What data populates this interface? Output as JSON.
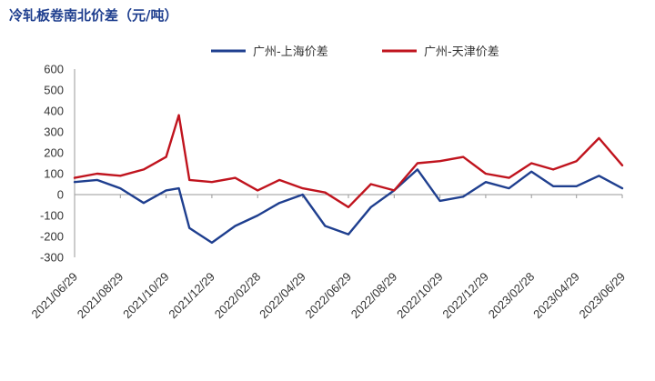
{
  "chart_data": {
    "type": "line",
    "title": "冷轧板卷南北价差（元/吨）",
    "xlabel": "",
    "ylabel": "",
    "ylim": [
      -300,
      600
    ],
    "yticks": [
      600,
      500,
      400,
      300,
      200,
      100,
      0,
      -100,
      -200,
      -300
    ],
    "x_tick_labels": [
      "2021/06/29",
      "2021/08/29",
      "2021/10/29",
      "2021/12/29",
      "2022/02/28",
      "2022/04/29",
      "2022/06/29",
      "2022/08/29",
      "2022/10/29",
      "2022/12/29",
      "2023/02/28",
      "2023/04/29",
      "2023/06/29"
    ],
    "x": [
      "2021/06/29",
      "2021/07/29",
      "2021/08/29",
      "2021/09/29",
      "2021/10/29",
      "2021/11/15",
      "2021/11/29",
      "2021/12/29",
      "2022/01/29",
      "2022/02/28",
      "2022/03/29",
      "2022/04/29",
      "2022/05/29",
      "2022/06/29",
      "2022/07/29",
      "2022/08/29",
      "2022/09/29",
      "2022/10/29",
      "2022/11/29",
      "2022/12/29",
      "2023/01/29",
      "2023/02/28",
      "2023/03/29",
      "2023/04/29",
      "2023/05/29",
      "2023/06/29"
    ],
    "legend_position": "top",
    "grid": false,
    "series": [
      {
        "name": "广州-上海价差",
        "color": "#1f3f8f",
        "values": [
          60,
          70,
          30,
          -40,
          20,
          30,
          -160,
          -230,
          -150,
          -100,
          -40,
          0,
          -150,
          -190,
          -60,
          20,
          120,
          -30,
          -10,
          60,
          30,
          110,
          40,
          40,
          90,
          30
        ]
      },
      {
        "name": "广州-天津价差",
        "color": "#c0141e",
        "values": [
          80,
          100,
          90,
          120,
          180,
          380,
          70,
          60,
          80,
          20,
          70,
          30,
          10,
          -60,
          50,
          20,
          150,
          160,
          180,
          100,
          80,
          150,
          120,
          160,
          270,
          140
        ]
      }
    ]
  }
}
